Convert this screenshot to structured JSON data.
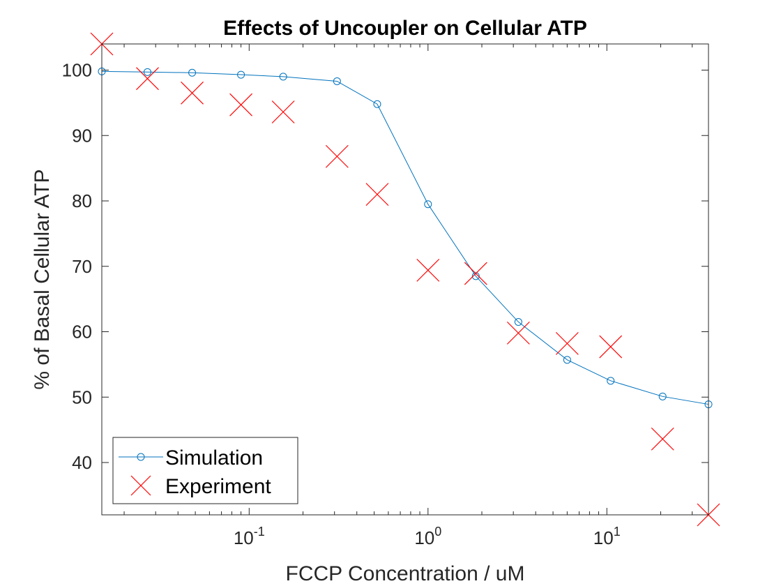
{
  "chart_data": {
    "type": "scatter",
    "title": "Effects of Uncoupler on Cellular ATP",
    "xlabel": "FCCP Concentration / uM",
    "ylabel": "% of Basal Cellular ATP",
    "xscale": "log",
    "xlim": [
      0.015,
      37
    ],
    "ylim": [
      32,
      104
    ],
    "yticks": [
      40,
      50,
      60,
      70,
      80,
      90,
      100
    ],
    "xticks": [
      {
        "base": "10",
        "exp": "-1",
        "value": 0.1
      },
      {
        "base": "10",
        "exp": "0",
        "value": 1
      },
      {
        "base": "10",
        "exp": "1",
        "value": 10
      }
    ],
    "grid": false,
    "legend": {
      "location": "bottom-left"
    },
    "series": [
      {
        "name": "Simulation",
        "color": "#0072BD",
        "marker": "circle",
        "line": "solid",
        "points": [
          [
            0.015,
            99.8
          ],
          [
            0.027,
            99.7
          ],
          [
            0.048,
            99.6
          ],
          [
            0.09,
            99.3
          ],
          [
            0.155,
            99.0
          ],
          [
            0.31,
            98.3
          ],
          [
            0.52,
            94.8
          ],
          [
            1.0,
            79.5
          ],
          [
            1.85,
            68.5
          ],
          [
            3.2,
            61.5
          ],
          [
            6.0,
            55.7
          ],
          [
            10.5,
            52.5
          ],
          [
            20.5,
            50.1
          ],
          [
            37.0,
            48.9
          ]
        ]
      },
      {
        "name": "Experiment",
        "color": "#FF0000",
        "marker": "x",
        "line": "none",
        "points": [
          [
            0.015,
            104.0
          ],
          [
            0.027,
            98.7
          ],
          [
            0.048,
            96.5
          ],
          [
            0.09,
            94.7
          ],
          [
            0.155,
            93.6
          ],
          [
            0.31,
            86.8
          ],
          [
            0.52,
            81.0
          ],
          [
            1.0,
            69.4
          ],
          [
            1.85,
            68.9
          ],
          [
            3.2,
            59.8
          ],
          [
            6.0,
            58.2
          ],
          [
            10.5,
            57.7
          ],
          [
            20.5,
            43.6
          ],
          [
            37.0,
            32.0
          ]
        ]
      }
    ]
  }
}
